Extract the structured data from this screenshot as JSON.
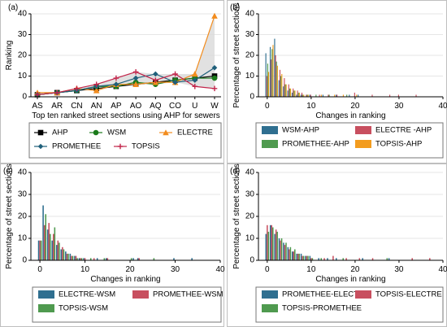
{
  "chart_data": [
    {
      "panel": "(a)",
      "type": "line",
      "xlabel": "Top ten ranked street sections using AHP for sewers",
      "ylabel": "Ranking",
      "categories": [
        "AS",
        "AR",
        "CN",
        "AN",
        "AP",
        "AO",
        "AQ",
        "CO",
        "U",
        "W"
      ],
      "ylim": [
        0,
        40
      ],
      "yticks": [
        0,
        10,
        20,
        30,
        40
      ],
      "series": [
        {
          "name": "AHP",
          "color": "#000000",
          "marker": "square",
          "values": [
            1,
            2,
            3,
            4,
            5,
            6,
            7,
            8,
            9,
            10
          ]
        },
        {
          "name": "WSM",
          "color": "#1a7a1a",
          "marker": "circle",
          "values": [
            1,
            2,
            3,
            5,
            5,
            7,
            6,
            8,
            9,
            9
          ]
        },
        {
          "name": "ELECTRE",
          "color": "#f28c1e",
          "marker": "triangle",
          "values": [
            2,
            2,
            4,
            3,
            6,
            6,
            7,
            7,
            11,
            39
          ]
        },
        {
          "name": "PROMETHEE",
          "color": "#1f5f7a",
          "marker": "diamond",
          "values": [
            1,
            2,
            3,
            5,
            6,
            9,
            11,
            7,
            8,
            14
          ]
        },
        {
          "name": "TOPSIS",
          "color": "#c2254a",
          "marker": "plus",
          "values": [
            1,
            2,
            4,
            6,
            9,
            12,
            8,
            11,
            5,
            4
          ]
        }
      ],
      "legend_position": "bottom",
      "grid": true
    },
    {
      "panel": "(b)",
      "type": "bar",
      "xlabel": "Changes in ranking",
      "ylabel": "Percentage of street sections",
      "xlim": [
        -2,
        40
      ],
      "ylim": [
        0,
        40
      ],
      "xticks": [
        0,
        10,
        20,
        30,
        40
      ],
      "yticks": [
        0,
        10,
        20,
        30,
        40
      ],
      "series": [
        {
          "name": "WSM-AHP",
          "color": "#2f6f90",
          "values": [
            [
              0,
              21
            ],
            [
              1,
              24
            ],
            [
              2,
              28
            ],
            [
              3,
              8
            ],
            [
              4,
              5
            ],
            [
              5,
              3
            ],
            [
              6,
              2
            ],
            [
              7,
              1
            ],
            [
              8,
              1
            ],
            [
              10,
              1
            ],
            [
              13,
              1
            ],
            [
              16,
              1
            ],
            [
              19,
              1
            ],
            [
              21,
              1
            ]
          ]
        },
        {
          "name": "ELECTRE -AHP",
          "color": "#c84f5f",
          "values": [
            [
              0,
              10
            ],
            [
              1,
              18
            ],
            [
              2,
              20
            ],
            [
              3,
              13
            ],
            [
              4,
              9
            ],
            [
              5,
              6
            ],
            [
              6,
              4
            ],
            [
              7,
              3
            ],
            [
              8,
              2
            ],
            [
              9,
              1
            ],
            [
              10,
              1
            ],
            [
              12,
              1
            ],
            [
              14,
              1
            ],
            [
              16,
              1
            ],
            [
              20,
              2
            ],
            [
              24,
              1
            ],
            [
              28,
              1
            ],
            [
              30,
              1
            ],
            [
              34,
              1
            ]
          ]
        },
        {
          "name": "PROMETHEE-AHP",
          "color": "#4f9a4f",
          "values": [
            [
              0,
              16
            ],
            [
              1,
              23
            ],
            [
              2,
              17
            ],
            [
              3,
              10
            ],
            [
              4,
              6
            ],
            [
              5,
              4
            ],
            [
              6,
              3
            ],
            [
              7,
              2
            ],
            [
              8,
              1
            ],
            [
              9,
              1
            ],
            [
              11,
              1
            ],
            [
              14,
              1
            ],
            [
              18,
              1
            ]
          ]
        },
        {
          "name": "TOPSIS-AHP",
          "color": "#f39c1e",
          "values": [
            [
              0,
              12
            ],
            [
              1,
              25
            ],
            [
              2,
              15
            ],
            [
              3,
              11
            ],
            [
              4,
              6
            ],
            [
              5,
              4
            ],
            [
              6,
              3
            ],
            [
              7,
              2
            ],
            [
              8,
              1
            ],
            [
              9,
              1
            ],
            [
              12,
              1
            ],
            [
              15,
              1
            ],
            [
              17,
              1
            ],
            [
              20,
              1
            ]
          ]
        }
      ],
      "legend_position": "bottom",
      "grid": true
    },
    {
      "panel": "(c)",
      "type": "bar",
      "xlabel": "Changes in ranking",
      "ylabel": "Percentage of street sections",
      "xlim": [
        -2,
        40
      ],
      "ylim": [
        0,
        40
      ],
      "xticks": [
        0,
        10,
        20,
        30,
        40
      ],
      "yticks": [
        0,
        10,
        20,
        30,
        40
      ],
      "series": [
        {
          "name": "ELECTRE-WSM",
          "color": "#2f6f90",
          "values": [
            [
              0,
              9
            ],
            [
              1,
              25
            ],
            [
              2,
              14
            ],
            [
              3,
              9
            ],
            [
              4,
              7
            ],
            [
              5,
              5
            ],
            [
              6,
              4
            ],
            [
              7,
              3
            ],
            [
              8,
              2
            ],
            [
              9,
              1
            ],
            [
              10,
              1
            ],
            [
              13,
              1
            ],
            [
              15,
              1
            ],
            [
              21,
              1
            ],
            [
              22,
              1
            ],
            [
              30,
              1
            ],
            [
              34,
              1
            ]
          ]
        },
        {
          "name": "PROMETHEE-WSM",
          "color": "#c84f5f",
          "values": [
            [
              0,
              9
            ],
            [
              1,
              16
            ],
            [
              2,
              17
            ],
            [
              3,
              12
            ],
            [
              4,
              9
            ],
            [
              5,
              6
            ],
            [
              6,
              3
            ],
            [
              7,
              2
            ],
            [
              8,
              2
            ],
            [
              9,
              1
            ],
            [
              10,
              1
            ],
            [
              12,
              1
            ],
            [
              15,
              1
            ],
            [
              22,
              1
            ]
          ]
        },
        {
          "name": "TOPSIS-WSM",
          "color": "#4f9a4f",
          "values": [
            [
              0,
              9
            ],
            [
              1,
              21
            ],
            [
              2,
              12
            ],
            [
              3,
              15
            ],
            [
              4,
              8
            ],
            [
              5,
              5
            ],
            [
              6,
              3
            ],
            [
              7,
              2
            ],
            [
              8,
              1
            ],
            [
              9,
              1
            ],
            [
              11,
              1
            ],
            [
              14,
              1
            ],
            [
              20,
              1
            ],
            [
              25,
              1
            ]
          ]
        }
      ],
      "legend_position": "bottom",
      "grid": true
    },
    {
      "panel": "(d)",
      "type": "bar",
      "xlabel": "Changes in ranking",
      "ylabel": "Percentage of street sections",
      "xlim": [
        -2,
        40
      ],
      "ylim": [
        0,
        40
      ],
      "xticks": [
        0,
        10,
        20,
        30,
        40
      ],
      "yticks": [
        0,
        10,
        20,
        30,
        40
      ],
      "series": [
        {
          "name": "PROMETHEE-ELECTRE",
          "color": "#2f6f90",
          "values": [
            [
              0,
              12
            ],
            [
              1,
              16
            ],
            [
              2,
              12
            ],
            [
              3,
              10
            ],
            [
              4,
              8
            ],
            [
              5,
              6
            ],
            [
              6,
              4
            ],
            [
              7,
              3
            ],
            [
              8,
              3
            ],
            [
              9,
              2
            ],
            [
              10,
              2
            ],
            [
              12,
              1
            ],
            [
              14,
              1
            ],
            [
              16,
              1
            ],
            [
              22,
              1
            ],
            [
              28,
              1
            ]
          ]
        },
        {
          "name": "TOPSIS-ELECTRE",
          "color": "#c84f5f",
          "values": [
            [
              0,
              16
            ],
            [
              1,
              16
            ],
            [
              2,
              14
            ],
            [
              3,
              9
            ],
            [
              4,
              7
            ],
            [
              5,
              5
            ],
            [
              6,
              4
            ],
            [
              7,
              3
            ],
            [
              8,
              2
            ],
            [
              9,
              2
            ],
            [
              10,
              1
            ],
            [
              13,
              1
            ],
            [
              15,
              2
            ],
            [
              18,
              1
            ],
            [
              21,
              1
            ],
            [
              24,
              1
            ],
            [
              33,
              1
            ],
            [
              37,
              1
            ]
          ]
        },
        {
          "name": "TOPSIS-PROMETHEE",
          "color": "#4f9a4f",
          "values": [
            [
              0,
              13
            ],
            [
              1,
              15
            ],
            [
              2,
              13
            ],
            [
              3,
              10
            ],
            [
              4,
              8
            ],
            [
              5,
              6
            ],
            [
              6,
              5
            ],
            [
              7,
              3
            ],
            [
              8,
              2
            ],
            [
              9,
              2
            ],
            [
              10,
              1
            ],
            [
              12,
              1
            ],
            [
              17,
              1
            ],
            [
              27,
              1
            ]
          ]
        }
      ],
      "legend_position": "bottom",
      "grid": true
    }
  ],
  "style": {
    "frame_color": "#000000",
    "grid_color": "#e6e6e6",
    "legend_border": "#777777",
    "fill_band": "#d9d9d9"
  }
}
